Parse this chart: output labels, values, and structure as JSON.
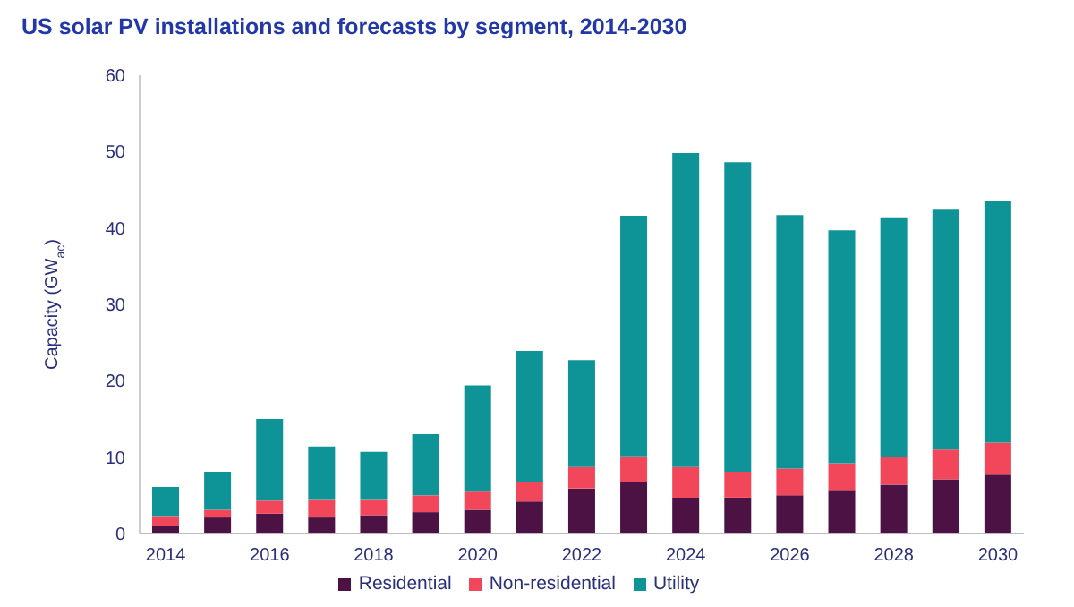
{
  "chart_data": {
    "type": "bar",
    "stacked": true,
    "title": "US solar PV installations and forecasts by segment, 2014-2030",
    "ylabel": "Capacity (GW$_{ac}$)",
    "categories": [
      "2014",
      null,
      "2016",
      null,
      "2018",
      null,
      "2020",
      null,
      "2022",
      null,
      "2024",
      null,
      "2026",
      null,
      "2028",
      null,
      "2030"
    ],
    "series": [
      {
        "name": "Residential",
        "color": "#4b1243",
        "values": [
          1.0,
          2.1,
          2.6,
          2.1,
          2.4,
          2.8,
          3.1,
          4.2,
          5.9,
          6.8,
          4.7,
          4.7,
          5.0,
          5.7,
          6.4,
          7.1,
          7.7
        ]
      },
      {
        "name": "Non-residential",
        "color": "#f2475b",
        "values": [
          1.3,
          1.0,
          1.7,
          2.4,
          2.1,
          2.2,
          2.5,
          2.6,
          2.8,
          3.3,
          4.0,
          3.4,
          3.5,
          3.5,
          3.6,
          3.9,
          4.2
        ]
      },
      {
        "name": "Utility",
        "color": "#0e9497",
        "values": [
          3.8,
          5.0,
          10.7,
          6.9,
          6.2,
          8.0,
          13.8,
          17.1,
          14.0,
          31.5,
          41.1,
          40.5,
          33.2,
          30.5,
          31.4,
          31.4,
          31.6
        ]
      }
    ],
    "ylim": [
      0,
      60
    ],
    "yticks": [
      0,
      10,
      20,
      30,
      40,
      50,
      60
    ],
    "grid": false,
    "legend": "bottom"
  }
}
